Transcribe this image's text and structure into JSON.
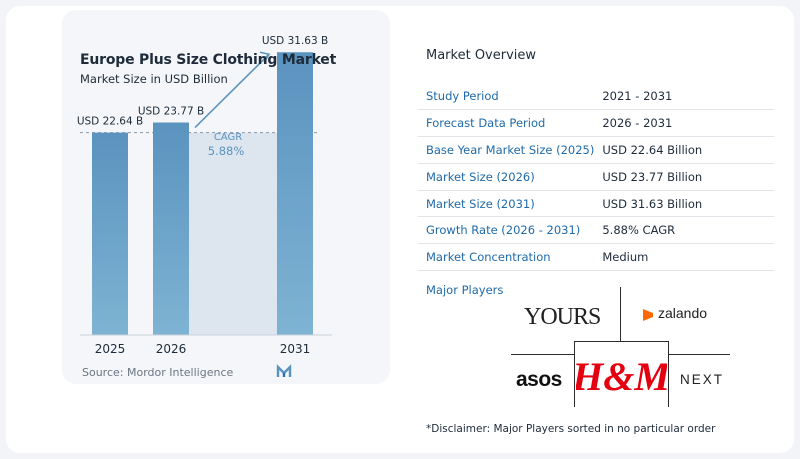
{
  "chart_data": {
    "type": "bar",
    "title": "Europe Plus Size Clothing Market",
    "subtitle": "Market Size in USD Billion",
    "categories": [
      "2025",
      "2026",
      "2031"
    ],
    "values": [
      22.64,
      23.77,
      31.63
    ],
    "value_labels": [
      "USD 22.64 B",
      "USD 23.77 B",
      "USD 31.63 B"
    ],
    "cagr_label": "CAGR",
    "cagr_value": "5.88%",
    "ylim": [
      0,
      33
    ],
    "grid": false,
    "bar_color": "#5b93bf",
    "bar_color_light": "#7eb3d3",
    "shade_color": "#dde6ef",
    "source": "Source:  Mordor Intelligence"
  },
  "overview": {
    "title": "Market Overview",
    "rows": [
      {
        "label": "Study Period",
        "value": "2021 - 2031"
      },
      {
        "label": "Forecast Data Period",
        "value": "2026 - 2031"
      },
      {
        "label": "Base Year Market Size (2025)",
        "value": "USD 22.64 Billion"
      },
      {
        "label": "Market Size (2026)",
        "value": "USD 23.77 Billion"
      },
      {
        "label": "Market Size (2031)",
        "value": "USD 31.63 Billion"
      },
      {
        "label": "Growth Rate (2026 - 2031)",
        "value": "5.88% CAGR"
      },
      {
        "label": "Market Concentration",
        "value": "Medium"
      }
    ],
    "players_label": "Major Players",
    "players": [
      "YOURS",
      "zalando",
      "asos",
      "H&M",
      "NEXT"
    ],
    "disclaimer": "*Disclaimer: Major Players sorted in no particular order"
  },
  "colors": {
    "accent": "#1f6aa8",
    "hm_red": "#e50010",
    "zalando_orange": "#ff6900"
  }
}
